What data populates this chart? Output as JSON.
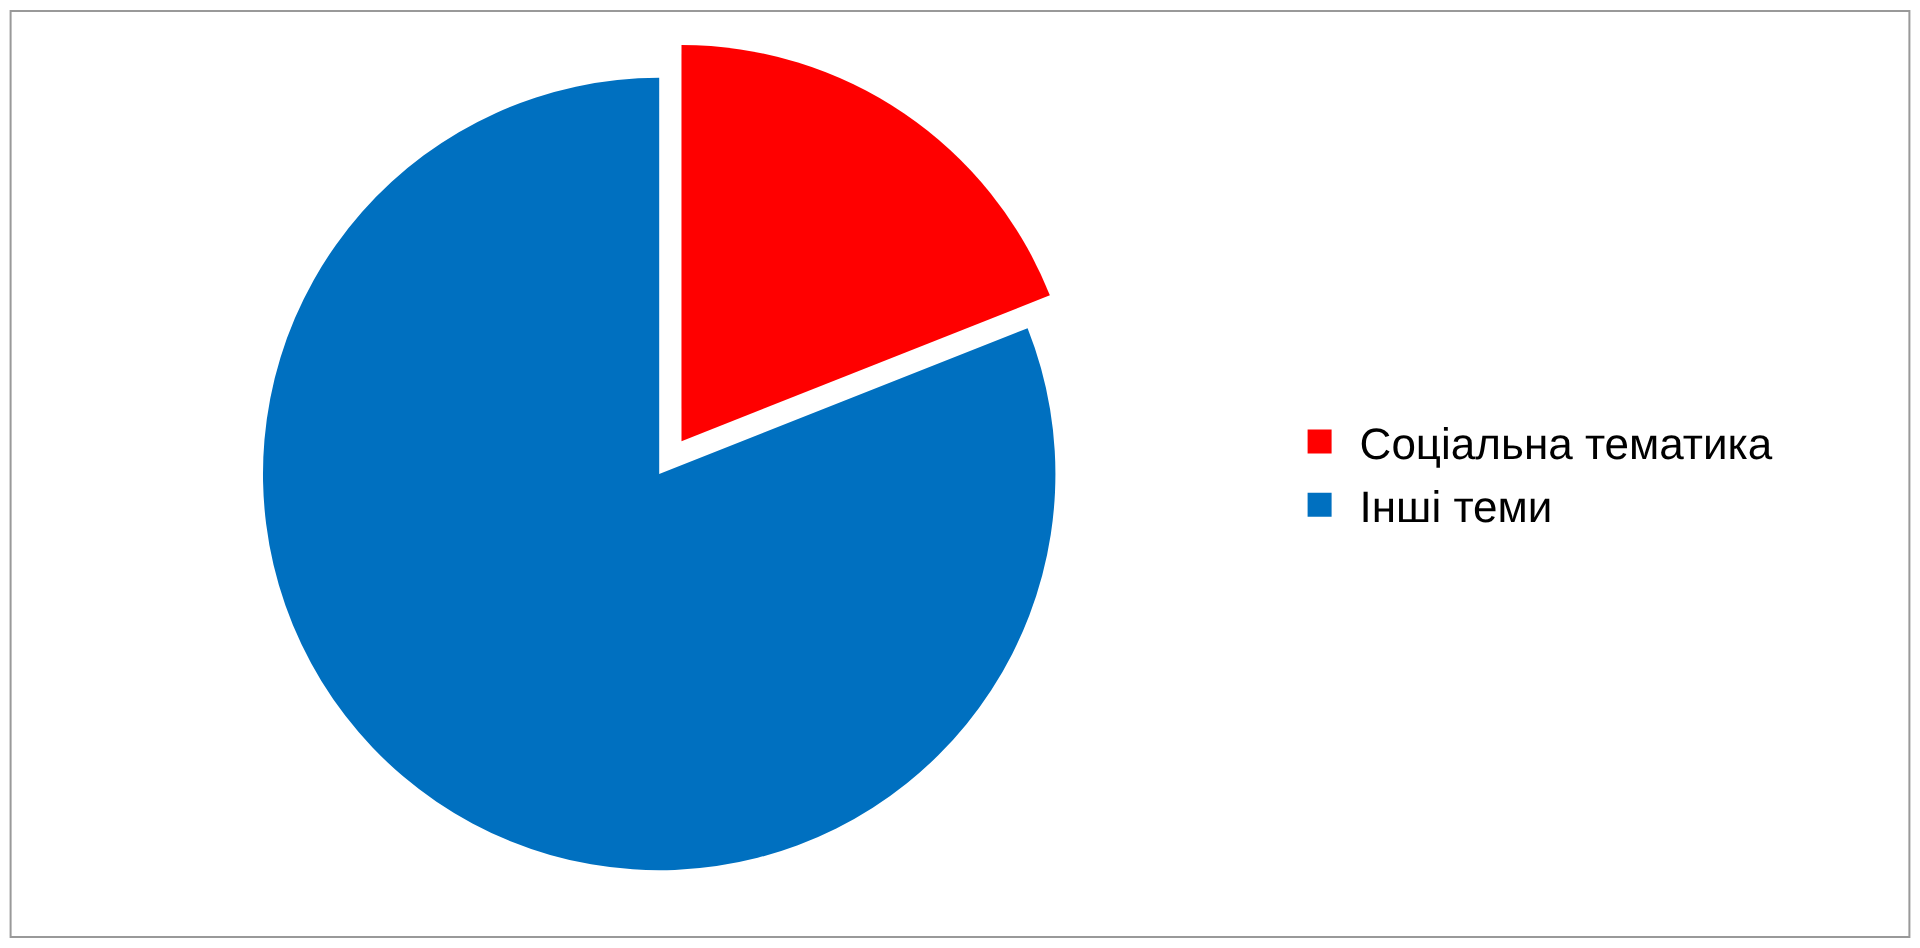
{
  "chart_data": {
    "type": "pie",
    "categories": [
      "Соціальна тематика",
      "Інші теми"
    ],
    "values": [
      19,
      81
    ],
    "colors": [
      "#ff0000",
      "#0070c0"
    ],
    "legend": "right"
  }
}
